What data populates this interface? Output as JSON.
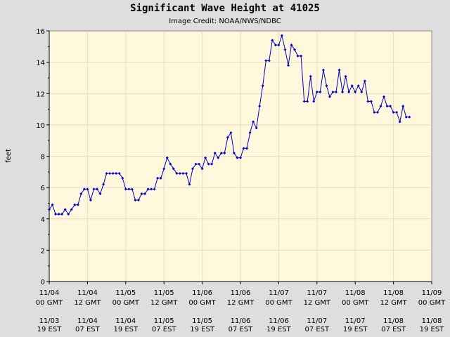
{
  "chart_data": {
    "type": "line",
    "title": "Significant Wave Height at 41025",
    "subtitle": "Image Credit: NOAA/NWS/NDBC",
    "ylabel": "feet",
    "xlabel": "",
    "ylim": [
      0,
      16
    ],
    "yticks": [
      "0",
      "2",
      "4",
      "6",
      "8",
      "10",
      "12",
      "14",
      "16"
    ],
    "xticks": [
      {
        "gmt": [
          "11/04",
          "00 GMT"
        ],
        "est": [
          "11/03",
          "19 EST"
        ]
      },
      {
        "gmt": [
          "11/04",
          "12 GMT"
        ],
        "est": [
          "11/04",
          "07 EST"
        ]
      },
      {
        "gmt": [
          "11/05",
          "00 GMT"
        ],
        "est": [
          "11/04",
          "19 EST"
        ]
      },
      {
        "gmt": [
          "11/05",
          "12 GMT"
        ],
        "est": [
          "11/05",
          "07 EST"
        ]
      },
      {
        "gmt": [
          "11/06",
          "00 GMT"
        ],
        "est": [
          "11/05",
          "19 EST"
        ]
      },
      {
        "gmt": [
          "11/06",
          "12 GMT"
        ],
        "est": [
          "11/06",
          "07 EST"
        ]
      },
      {
        "gmt": [
          "11/07",
          "00 GMT"
        ],
        "est": [
          "11/06",
          "19 EST"
        ]
      },
      {
        "gmt": [
          "11/07",
          "12 GMT"
        ],
        "est": [
          "11/07",
          "07 EST"
        ]
      },
      {
        "gmt": [
          "11/08",
          "00 GMT"
        ],
        "est": [
          "11/07",
          "19 EST"
        ]
      },
      {
        "gmt": [
          "11/08",
          "12 GMT"
        ],
        "est": [
          "11/08",
          "07 EST"
        ]
      },
      {
        "gmt": [
          "11/09",
          "00 GMT"
        ],
        "est": [
          "11/08",
          "19 EST"
        ]
      }
    ],
    "x_unit": "hours since 11/04 00 GMT",
    "grid": true,
    "colors": {
      "line": "#0000cc",
      "plot_bg": "#fff8dc",
      "page_bg": "#dedede",
      "grid": "#e6dcc8"
    },
    "series": [
      {
        "values": [
          4.6,
          4.9,
          4.3,
          4.3,
          4.3,
          4.6,
          4.3,
          4.6,
          4.9,
          4.9,
          5.6,
          5.9,
          5.9,
          5.2,
          5.9,
          5.9,
          5.6,
          6.2,
          6.9,
          6.9,
          6.9,
          6.9,
          6.9,
          6.6,
          5.9,
          5.9,
          5.9,
          5.2,
          5.2,
          5.6,
          5.6,
          5.9,
          5.9,
          5.9,
          6.6,
          6.6,
          7.2,
          7.9,
          7.5,
          7.2,
          6.9,
          6.9,
          6.9,
          6.9,
          6.2,
          7.2,
          7.5,
          7.5,
          7.2,
          7.9,
          7.5,
          7.5,
          8.2,
          7.9,
          8.2,
          8.2,
          9.2,
          9.5,
          8.2,
          7.9,
          7.9,
          8.5,
          8.5,
          9.5,
          10.2,
          9.8,
          11.2,
          12.5,
          14.1,
          14.1,
          15.4,
          15.1,
          15.1,
          15.7,
          14.8,
          13.8,
          15.1,
          14.8,
          14.4,
          14.4,
          11.5,
          11.5,
          13.1,
          11.5,
          12.1,
          12.1,
          13.5,
          12.5,
          11.8,
          12.1,
          12.1,
          13.5,
          12.1,
          13.1,
          12.1,
          12.5,
          12.1,
          12.5,
          12.1,
          12.8,
          11.5,
          11.5,
          10.8,
          10.8,
          11.2,
          11.8,
          11.2,
          11.2,
          10.8,
          10.8,
          10.2,
          11.2,
          10.5,
          10.5
        ]
      }
    ]
  }
}
